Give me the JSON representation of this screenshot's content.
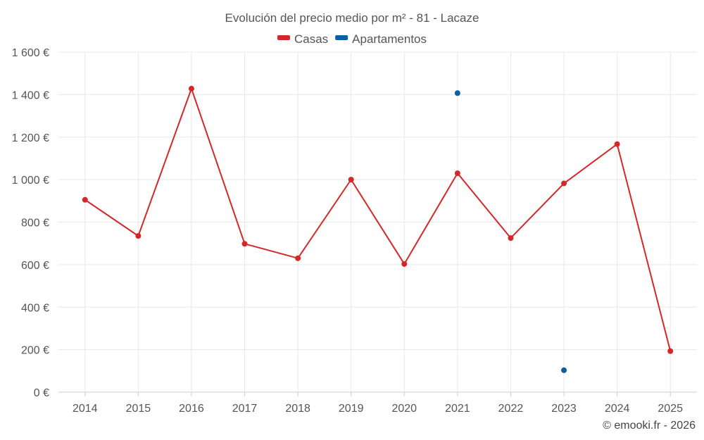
{
  "credit": "© emooki.fr - 2026",
  "chart_data": {
    "type": "line",
    "title": "Evolución del precio medio por m² - 81 - Lacaze",
    "categories": [
      "2014",
      "2015",
      "2016",
      "2017",
      "2018",
      "2019",
      "2020",
      "2021",
      "2022",
      "2023",
      "2024",
      "2025"
    ],
    "y_ticks": [
      "0 €",
      "200 €",
      "400 €",
      "600 €",
      "800 €",
      "1 000 €",
      "1 200 €",
      "1 400 €",
      "1 600 €"
    ],
    "ylim": [
      0,
      1600
    ],
    "ystep": 200,
    "grid": true,
    "legend_position": "top-center",
    "series": [
      {
        "name": "Casas",
        "color": "#d62728",
        "mode": "lines+markers",
        "values": [
          905,
          735,
          1428,
          698,
          630,
          1000,
          603,
          1030,
          725,
          982,
          1167,
          193
        ]
      },
      {
        "name": "Apartamentos",
        "color": "#0d5fa0",
        "mode": "markers",
        "values": [
          null,
          null,
          null,
          null,
          null,
          null,
          null,
          1407,
          null,
          103,
          null,
          null
        ]
      }
    ]
  }
}
